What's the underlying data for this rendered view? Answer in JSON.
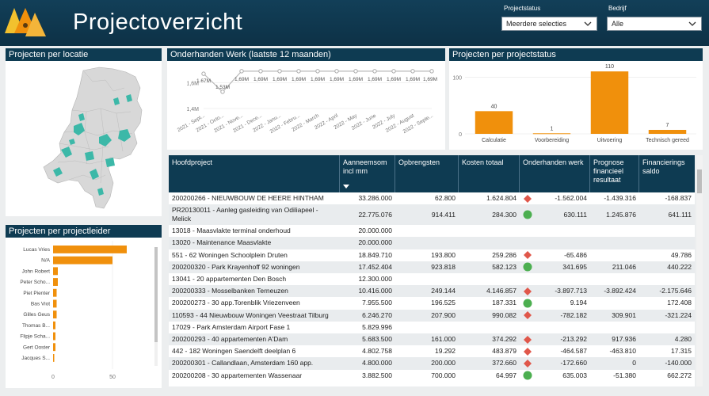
{
  "header": {
    "title": "Projectoverzicht"
  },
  "filters": {
    "status": {
      "label": "Projectstatus",
      "value": "Meerdere selecties"
    },
    "company": {
      "label": "Bedrijf",
      "value": "Alle"
    }
  },
  "colors": {
    "navy": "#0e3b52",
    "orange": "#f0900c",
    "teal": "#3cb8a8",
    "green": "#4caf50",
    "red": "#e0574a"
  },
  "panels": {
    "map_title": "Projecten per locatie",
    "line_title": "Onderhanden Werk (laatste 12 maanden)",
    "status_title": "Projecten per projectstatus",
    "leader_title": "Projecten per projectleider"
  },
  "chart_data": [
    {
      "type": "line",
      "title": "Onderhanden Werk (laatste 12 maanden)",
      "x": [
        "2021 - Sept...",
        "2021 - Octo...",
        "2021 - Nove...",
        "2021 - Dece...",
        "2022 - Janu...",
        "2022 - Febru...",
        "2022 - March",
        "2022 - April",
        "2022 - May",
        "2022 - June",
        "2022 - July",
        "2022 - August",
        "2022 - Septe..."
      ],
      "values": [
        1.67,
        1.53,
        1.69,
        1.69,
        1.69,
        1.69,
        1.69,
        1.69,
        1.69,
        1.69,
        1.69,
        1.69,
        1.69
      ],
      "labels": [
        "1.67M",
        "1,53M",
        "1,69M",
        "1,69M",
        "1,69M",
        "1,69M",
        "1,69M",
        "1,69M",
        "1,69M",
        "1,69M",
        "1,69M",
        "1,69M",
        "1,69M"
      ],
      "y_ticks": [
        "1,4M",
        "1,6M"
      ],
      "ylim": [
        1.4,
        1.72
      ]
    },
    {
      "type": "bar",
      "title": "Projecten per projectstatus",
      "categories": [
        "Calculatie",
        "Voorbereiding",
        "Uitvoering",
        "Technisch gereed"
      ],
      "values": [
        40,
        1,
        110,
        7
      ],
      "y_ticks": [
        "100",
        "0"
      ],
      "ylim": [
        0,
        120
      ]
    },
    {
      "type": "bar",
      "orientation": "horizontal",
      "title": "Projecten per projectleider",
      "categories": [
        "Lucas Vries",
        "N/A",
        "John Robert",
        "Peter Scho...",
        "Piet Pienter",
        "Bas Viot",
        "Gilles Geus",
        "Thomas B...",
        "Flipje Scha...",
        "Gert Ooster",
        "Jacques S..."
      ],
      "values": [
        62,
        50,
        4,
        4,
        3,
        3,
        3,
        2,
        2,
        2,
        1
      ],
      "x_ticks": [
        "0",
        "50"
      ],
      "xlim": [
        0,
        80
      ]
    }
  ],
  "table": {
    "columns": [
      "Hoofdproject",
      "Aanneemsom incl mm",
      "Opbrengsten",
      "Kosten totaal",
      "Onderhanden werk",
      "Prognose financieel resultaat",
      "Financierings saldo"
    ],
    "rows": [
      {
        "name": "200200266 - NIEUWBOUW DE HEERE HINTHAM",
        "aanneem": "33.286.000",
        "opbr": "62.800",
        "kosten": "1.624.804",
        "status": "red",
        "ohw": "-1.562.004",
        "prog": "-1.439.316",
        "fin": "-168.837"
      },
      {
        "name": "PR20130011 - Aanleg gasleiding van Odiliapeel - Melick",
        "aanneem": "22.775.076",
        "opbr": "914.411",
        "kosten": "284.300",
        "status": "green",
        "ohw": "630.111",
        "prog": "1.245.876",
        "fin": "641.111"
      },
      {
        "name": "13018 - Maasvlakte terminal onderhoud",
        "aanneem": "20.000.000",
        "opbr": "",
        "kosten": "",
        "status": "",
        "ohw": "",
        "prog": "",
        "fin": ""
      },
      {
        "name": "13020 - Maintenance Maasvlakte",
        "aanneem": "20.000.000",
        "opbr": "",
        "kosten": "",
        "status": "",
        "ohw": "",
        "prog": "",
        "fin": ""
      },
      {
        "name": "551 - 62 Woningen Schoolplein Druten",
        "aanneem": "18.849.710",
        "opbr": "193.800",
        "kosten": "259.286",
        "status": "red",
        "ohw": "-65.486",
        "prog": "",
        "fin": "49.786"
      },
      {
        "name": "200200320 - Park Krayenhoff 92 woningen",
        "aanneem": "17.452.404",
        "opbr": "923.818",
        "kosten": "582.123",
        "status": "green",
        "ohw": "341.695",
        "prog": "211.046",
        "fin": "440.222"
      },
      {
        "name": "13041 - 20 appartementen Den Bosch",
        "aanneem": "12.300.000",
        "opbr": "",
        "kosten": "",
        "status": "",
        "ohw": "",
        "prog": "",
        "fin": ""
      },
      {
        "name": "200200333 - Mosselbanken Terneuzen",
        "aanneem": "10.416.000",
        "opbr": "249.144",
        "kosten": "4.146.857",
        "status": "red",
        "ohw": "-3.897.713",
        "prog": "-3.892.424",
        "fin": "-2.175.646"
      },
      {
        "name": "200200273 - 30 app.Torenblik Vriezenveen",
        "aanneem": "7.955.500",
        "opbr": "196.525",
        "kosten": "187.331",
        "status": "green",
        "ohw": "9.194",
        "prog": "",
        "fin": "172.408"
      },
      {
        "name": "110593 - 44 Nieuwbouw Woningen Veestraat Tilburg",
        "aanneem": "6.246.270",
        "opbr": "207.900",
        "kosten": "990.082",
        "status": "red",
        "ohw": "-782.182",
        "prog": "309.901",
        "fin": "-321.224"
      },
      {
        "name": "17029 - Park Amsterdam Airport Fase 1",
        "aanneem": "5.829.996",
        "opbr": "",
        "kosten": "",
        "status": "",
        "ohw": "",
        "prog": "",
        "fin": ""
      },
      {
        "name": "200200293 - 40 appartementen A'Dam",
        "aanneem": "5.683.500",
        "opbr": "161.000",
        "kosten": "374.292",
        "status": "red",
        "ohw": "-213.292",
        "prog": "917.936",
        "fin": "4.280"
      },
      {
        "name": "442 - 182 Woningen Saendelft deelplan 6",
        "aanneem": "4.802.758",
        "opbr": "19.292",
        "kosten": "483.879",
        "status": "red",
        "ohw": "-464.587",
        "prog": "-463.810",
        "fin": "17.315"
      },
      {
        "name": "200200301 - Callandlaan, Amsterdam 160 app.",
        "aanneem": "4.800.000",
        "opbr": "200.000",
        "kosten": "372.660",
        "status": "red",
        "ohw": "-172.660",
        "prog": "0",
        "fin": "-140.000"
      },
      {
        "name": "200200208 - 30 appartementen Wassenaar",
        "aanneem": "3.882.500",
        "opbr": "700.000",
        "kosten": "64.997",
        "status": "green",
        "ohw": "635.003",
        "prog": "-51.380",
        "fin": "662.272"
      }
    ]
  }
}
